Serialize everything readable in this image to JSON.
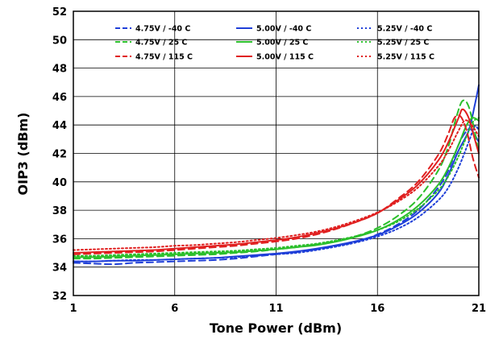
{
  "chart_data": {
    "type": "line",
    "title": "",
    "xlabel": "Tone Power (dBm)",
    "ylabel": "OIP3 (dBm)",
    "xlim": [
      1,
      21
    ],
    "ylim": [
      32,
      52
    ],
    "xticks": [
      1,
      6,
      11,
      16,
      21
    ],
    "yticks": [
      32,
      34,
      36,
      38,
      40,
      42,
      44,
      46,
      48,
      50,
      52
    ],
    "grid": true,
    "legend_position": "top",
    "series": [
      {
        "name": "4.75V / -40 C",
        "color": "#1f3fd8",
        "style": "dashed",
        "points": [
          [
            1,
            34.3
          ],
          [
            2,
            34.25
          ],
          [
            3,
            34.2
          ],
          [
            4,
            34.3
          ],
          [
            5,
            34.35
          ],
          [
            6,
            34.4
          ],
          [
            7,
            34.45
          ],
          [
            8,
            34.5
          ],
          [
            9,
            34.6
          ],
          [
            10,
            34.75
          ],
          [
            11,
            34.9
          ],
          [
            12,
            35.05
          ],
          [
            13,
            35.25
          ],
          [
            14,
            35.5
          ],
          [
            15,
            35.8
          ],
          [
            16,
            36.3
          ],
          [
            17,
            37.0
          ],
          [
            18,
            38.0
          ],
          [
            19,
            39.6
          ],
          [
            19.5,
            40.8
          ],
          [
            20,
            42.6
          ],
          [
            20.3,
            43.4
          ],
          [
            20.6,
            43.7
          ],
          [
            21,
            42.8
          ]
        ]
      },
      {
        "name": "5.00V / -40 C",
        "color": "#1f3fd8",
        "style": "solid",
        "points": [
          [
            1,
            34.4
          ],
          [
            2,
            34.4
          ],
          [
            3,
            34.45
          ],
          [
            4,
            34.45
          ],
          [
            5,
            34.5
          ],
          [
            6,
            34.55
          ],
          [
            7,
            34.6
          ],
          [
            8,
            34.65
          ],
          [
            9,
            34.75
          ],
          [
            10,
            34.85
          ],
          [
            11,
            34.95
          ],
          [
            12,
            35.1
          ],
          [
            13,
            35.3
          ],
          [
            14,
            35.55
          ],
          [
            15,
            35.85
          ],
          [
            16,
            36.25
          ],
          [
            17,
            36.9
          ],
          [
            18,
            37.8
          ],
          [
            19,
            39.2
          ],
          [
            19.5,
            40.5
          ],
          [
            20,
            42.2
          ],
          [
            20.5,
            43.6
          ],
          [
            20.8,
            45.4
          ],
          [
            21,
            46.8
          ]
        ]
      },
      {
        "name": "5.25V / -40 C",
        "color": "#1f3fd8",
        "style": "dotted",
        "points": [
          [
            1,
            34.4
          ],
          [
            2,
            34.4
          ],
          [
            3,
            34.45
          ],
          [
            4,
            34.5
          ],
          [
            5,
            34.5
          ],
          [
            6,
            34.55
          ],
          [
            7,
            34.6
          ],
          [
            8,
            34.65
          ],
          [
            9,
            34.7
          ],
          [
            10,
            34.8
          ],
          [
            11,
            34.9
          ],
          [
            12,
            35.0
          ],
          [
            13,
            35.2
          ],
          [
            14,
            35.45
          ],
          [
            15,
            35.75
          ],
          [
            16,
            36.15
          ],
          [
            17,
            36.7
          ],
          [
            18,
            37.5
          ],
          [
            19,
            38.7
          ],
          [
            19.5,
            39.6
          ],
          [
            20,
            41.0
          ],
          [
            20.5,
            42.8
          ],
          [
            20.8,
            43.9
          ],
          [
            21,
            43.6
          ]
        ]
      },
      {
        "name": "4.75V / 25 C",
        "color": "#2bbf2b",
        "style": "dashed",
        "points": [
          [
            1,
            34.6
          ],
          [
            2,
            34.6
          ],
          [
            3,
            34.65
          ],
          [
            4,
            34.7
          ],
          [
            5,
            34.75
          ],
          [
            6,
            34.8
          ],
          [
            7,
            34.85
          ],
          [
            8,
            34.9
          ],
          [
            9,
            35.0
          ],
          [
            10,
            35.1
          ],
          [
            11,
            35.25
          ],
          [
            12,
            35.4
          ],
          [
            13,
            35.6
          ],
          [
            14,
            35.85
          ],
          [
            15,
            36.2
          ],
          [
            16,
            36.75
          ],
          [
            17,
            37.6
          ],
          [
            18,
            38.8
          ],
          [
            19,
            40.8
          ],
          [
            19.5,
            42.5
          ],
          [
            19.9,
            44.6
          ],
          [
            20.2,
            45.7
          ],
          [
            20.5,
            45.3
          ],
          [
            20.8,
            43.5
          ],
          [
            21,
            42.0
          ]
        ]
      },
      {
        "name": "5.00V / 25 C",
        "color": "#2bbf2b",
        "style": "solid",
        "points": [
          [
            1,
            34.7
          ],
          [
            2,
            34.7
          ],
          [
            3,
            34.75
          ],
          [
            4,
            34.8
          ],
          [
            5,
            34.85
          ],
          [
            6,
            34.9
          ],
          [
            7,
            34.95
          ],
          [
            8,
            35.0
          ],
          [
            9,
            35.05
          ],
          [
            10,
            35.15
          ],
          [
            11,
            35.25
          ],
          [
            12,
            35.4
          ],
          [
            13,
            35.55
          ],
          [
            14,
            35.8
          ],
          [
            15,
            36.15
          ],
          [
            16,
            36.6
          ],
          [
            17,
            37.3
          ],
          [
            18,
            38.3
          ],
          [
            19,
            39.8
          ],
          [
            19.5,
            41.0
          ],
          [
            20,
            42.6
          ],
          [
            20.4,
            44.0
          ],
          [
            20.7,
            44.5
          ],
          [
            21,
            44.3
          ]
        ]
      },
      {
        "name": "5.25V / 25 C",
        "color": "#2bbf2b",
        "style": "dotted",
        "points": [
          [
            1,
            34.8
          ],
          [
            2,
            34.8
          ],
          [
            3,
            34.85
          ],
          [
            4,
            34.9
          ],
          [
            5,
            34.95
          ],
          [
            6,
            35.0
          ],
          [
            7,
            35.05
          ],
          [
            8,
            35.1
          ],
          [
            9,
            35.15
          ],
          [
            10,
            35.25
          ],
          [
            11,
            35.35
          ],
          [
            12,
            35.5
          ],
          [
            13,
            35.65
          ],
          [
            14,
            35.9
          ],
          [
            15,
            36.2
          ],
          [
            16,
            36.6
          ],
          [
            17,
            37.2
          ],
          [
            18,
            38.1
          ],
          [
            19,
            39.4
          ],
          [
            19.5,
            40.4
          ],
          [
            20,
            41.8
          ],
          [
            20.4,
            43.2
          ],
          [
            20.7,
            44.2
          ],
          [
            21,
            44.5
          ]
        ]
      },
      {
        "name": "4.75V / 115 C",
        "color": "#e02020",
        "style": "dashed",
        "points": [
          [
            1,
            34.9
          ],
          [
            2,
            34.95
          ],
          [
            3,
            35.0
          ],
          [
            4,
            35.05
          ],
          [
            5,
            35.1
          ],
          [
            6,
            35.2
          ],
          [
            7,
            35.3
          ],
          [
            8,
            35.4
          ],
          [
            9,
            35.5
          ],
          [
            10,
            35.65
          ],
          [
            11,
            35.8
          ],
          [
            12,
            36.0
          ],
          [
            13,
            36.3
          ],
          [
            14,
            36.7
          ],
          [
            15,
            37.2
          ],
          [
            16,
            37.8
          ],
          [
            17,
            38.8
          ],
          [
            18,
            40.0
          ],
          [
            19,
            41.9
          ],
          [
            19.5,
            43.4
          ],
          [
            19.8,
            44.5
          ],
          [
            20.1,
            44.6
          ],
          [
            20.4,
            43.6
          ],
          [
            20.7,
            41.7
          ],
          [
            21,
            40.3
          ]
        ]
      },
      {
        "name": "5.00V / 115 C",
        "color": "#e02020",
        "style": "solid",
        "points": [
          [
            1,
            35.0
          ],
          [
            2,
            35.05
          ],
          [
            3,
            35.1
          ],
          [
            4,
            35.15
          ],
          [
            5,
            35.2
          ],
          [
            6,
            35.3
          ],
          [
            7,
            35.4
          ],
          [
            8,
            35.5
          ],
          [
            9,
            35.6
          ],
          [
            10,
            35.75
          ],
          [
            11,
            35.9
          ],
          [
            12,
            36.1
          ],
          [
            13,
            36.4
          ],
          [
            14,
            36.75
          ],
          [
            15,
            37.2
          ],
          [
            16,
            37.8
          ],
          [
            17,
            38.7
          ],
          [
            18,
            39.8
          ],
          [
            19,
            41.5
          ],
          [
            19.5,
            42.8
          ],
          [
            20,
            44.5
          ],
          [
            20.2,
            45.1
          ],
          [
            20.5,
            44.5
          ],
          [
            20.8,
            43.0
          ],
          [
            21,
            42.0
          ]
        ]
      },
      {
        "name": "5.25V / 115 C",
        "color": "#e02020",
        "style": "dotted",
        "points": [
          [
            1,
            35.2
          ],
          [
            2,
            35.25
          ],
          [
            3,
            35.3
          ],
          [
            4,
            35.35
          ],
          [
            5,
            35.4
          ],
          [
            6,
            35.5
          ],
          [
            7,
            35.55
          ],
          [
            8,
            35.65
          ],
          [
            9,
            35.75
          ],
          [
            10,
            35.9
          ],
          [
            11,
            36.05
          ],
          [
            12,
            36.25
          ],
          [
            13,
            36.5
          ],
          [
            14,
            36.85
          ],
          [
            15,
            37.3
          ],
          [
            16,
            37.85
          ],
          [
            17,
            38.6
          ],
          [
            18,
            39.6
          ],
          [
            19,
            41.1
          ],
          [
            19.5,
            42.2
          ],
          [
            20,
            43.6
          ],
          [
            20.3,
            44.3
          ],
          [
            20.6,
            44.1
          ],
          [
            21,
            43.2
          ]
        ]
      }
    ]
  }
}
